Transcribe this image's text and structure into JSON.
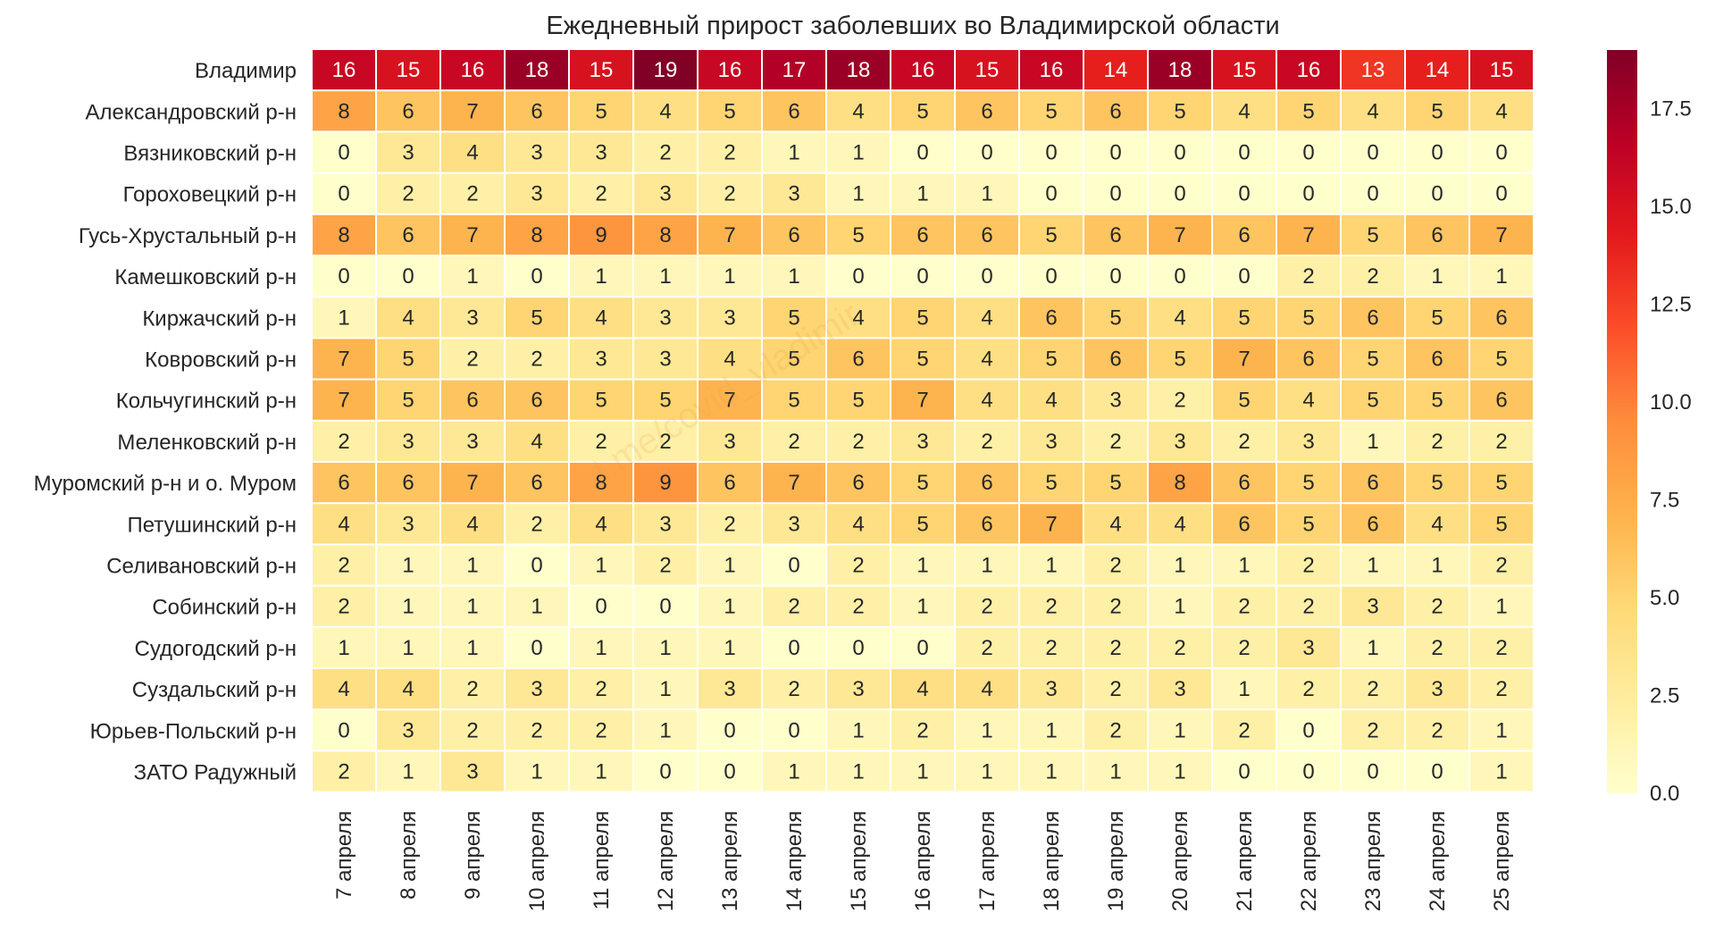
{
  "chart_data": {
    "type": "heatmap",
    "title": "Ежедневный прирост заболевших во Владимирской области",
    "rows": [
      "Владимир",
      "Александровский р-н",
      "Вязниковский р-н",
      "Гороховецкий р-н",
      "Гусь-Хрустальный р-н",
      "Камешковский р-н",
      "Киржачский р-н",
      "Ковровский р-н",
      "Кольчугинский р-н",
      "Меленковский р-н",
      "Муромский р-н и о. Муром",
      "Петушинский р-н",
      "Селивановский р-н",
      "Собинский р-н",
      "Судогодский р-н",
      "Суздальский р-н",
      "Юрьев-Польский р-н",
      "ЗАТО Радужный"
    ],
    "columns": [
      "7 апреля",
      "8 апреля",
      "9 апреля",
      "10 апреля",
      "11 апреля",
      "12 апреля",
      "13 апреля",
      "14 апреля",
      "15 апреля",
      "16 апреля",
      "17 апреля",
      "18 апреля",
      "19 апреля",
      "20 апреля",
      "21 апреля",
      "22 апреля",
      "23 апреля",
      "24 апреля",
      "25 апреля"
    ],
    "values": [
      [
        16,
        15,
        16,
        18,
        15,
        19,
        16,
        17,
        18,
        16,
        15,
        16,
        14,
        18,
        15,
        16,
        13,
        14,
        15
      ],
      [
        8,
        6,
        7,
        6,
        5,
        4,
        5,
        6,
        4,
        5,
        6,
        5,
        6,
        5,
        4,
        5,
        4,
        5,
        4
      ],
      [
        0,
        3,
        4,
        3,
        3,
        2,
        2,
        1,
        1,
        0,
        0,
        0,
        0,
        0,
        0,
        0,
        0,
        0,
        0
      ],
      [
        0,
        2,
        2,
        3,
        2,
        3,
        2,
        3,
        1,
        1,
        1,
        0,
        0,
        0,
        0,
        0,
        0,
        0,
        0
      ],
      [
        8,
        6,
        7,
        8,
        9,
        8,
        7,
        6,
        5,
        6,
        6,
        5,
        6,
        7,
        6,
        7,
        5,
        6,
        7
      ],
      [
        0,
        0,
        1,
        0,
        1,
        1,
        1,
        1,
        0,
        0,
        0,
        0,
        0,
        0,
        0,
        2,
        2,
        1,
        1
      ],
      [
        1,
        4,
        3,
        5,
        4,
        3,
        3,
        5,
        4,
        5,
        4,
        6,
        5,
        4,
        5,
        5,
        6,
        5,
        6
      ],
      [
        7,
        5,
        2,
        2,
        3,
        3,
        4,
        5,
        6,
        5,
        4,
        5,
        6,
        5,
        7,
        6,
        5,
        6,
        5
      ],
      [
        7,
        5,
        6,
        6,
        5,
        5,
        7,
        5,
        5,
        7,
        4,
        4,
        3,
        2,
        5,
        4,
        5,
        5,
        6
      ],
      [
        2,
        3,
        3,
        4,
        2,
        2,
        3,
        2,
        2,
        3,
        2,
        3,
        2,
        3,
        2,
        3,
        1,
        2,
        2
      ],
      [
        6,
        6,
        7,
        6,
        8,
        9,
        6,
        7,
        6,
        5,
        6,
        5,
        5,
        8,
        6,
        5,
        6,
        5,
        5
      ],
      [
        4,
        3,
        4,
        2,
        4,
        3,
        2,
        3,
        4,
        5,
        6,
        7,
        4,
        4,
        6,
        5,
        6,
        4,
        5
      ],
      [
        2,
        1,
        1,
        0,
        1,
        2,
        1,
        0,
        2,
        1,
        1,
        1,
        2,
        1,
        1,
        2,
        1,
        1,
        2
      ],
      [
        2,
        1,
        1,
        1,
        0,
        0,
        1,
        2,
        2,
        1,
        2,
        2,
        2,
        1,
        2,
        2,
        3,
        2,
        1
      ],
      [
        1,
        1,
        1,
        0,
        1,
        1,
        1,
        0,
        0,
        0,
        2,
        2,
        2,
        2,
        2,
        3,
        1,
        2,
        2
      ],
      [
        4,
        4,
        2,
        3,
        2,
        1,
        3,
        2,
        3,
        4,
        4,
        3,
        2,
        3,
        1,
        2,
        2,
        3,
        2
      ],
      [
        0,
        3,
        2,
        2,
        2,
        1,
        0,
        0,
        1,
        2,
        1,
        1,
        2,
        1,
        2,
        0,
        2,
        2,
        1
      ],
      [
        2,
        1,
        3,
        1,
        1,
        0,
        0,
        1,
        1,
        1,
        1,
        1,
        1,
        1,
        0,
        0,
        0,
        0,
        1
      ]
    ],
    "colormap": "YlOrRd",
    "colors": [
      "#ffffcc",
      "#ffeda0",
      "#fed976",
      "#feb24c",
      "#fd8d3c",
      "#fc4e2a",
      "#e31a1c",
      "#bd0026",
      "#800026"
    ],
    "vmin": 0,
    "vmax": 19,
    "colorbar_ticks": [
      "0.0",
      "2.5",
      "5.0",
      "7.5",
      "10.0",
      "12.5",
      "15.0",
      "17.5"
    ],
    "watermark": "t.me/covid_vladimir"
  }
}
